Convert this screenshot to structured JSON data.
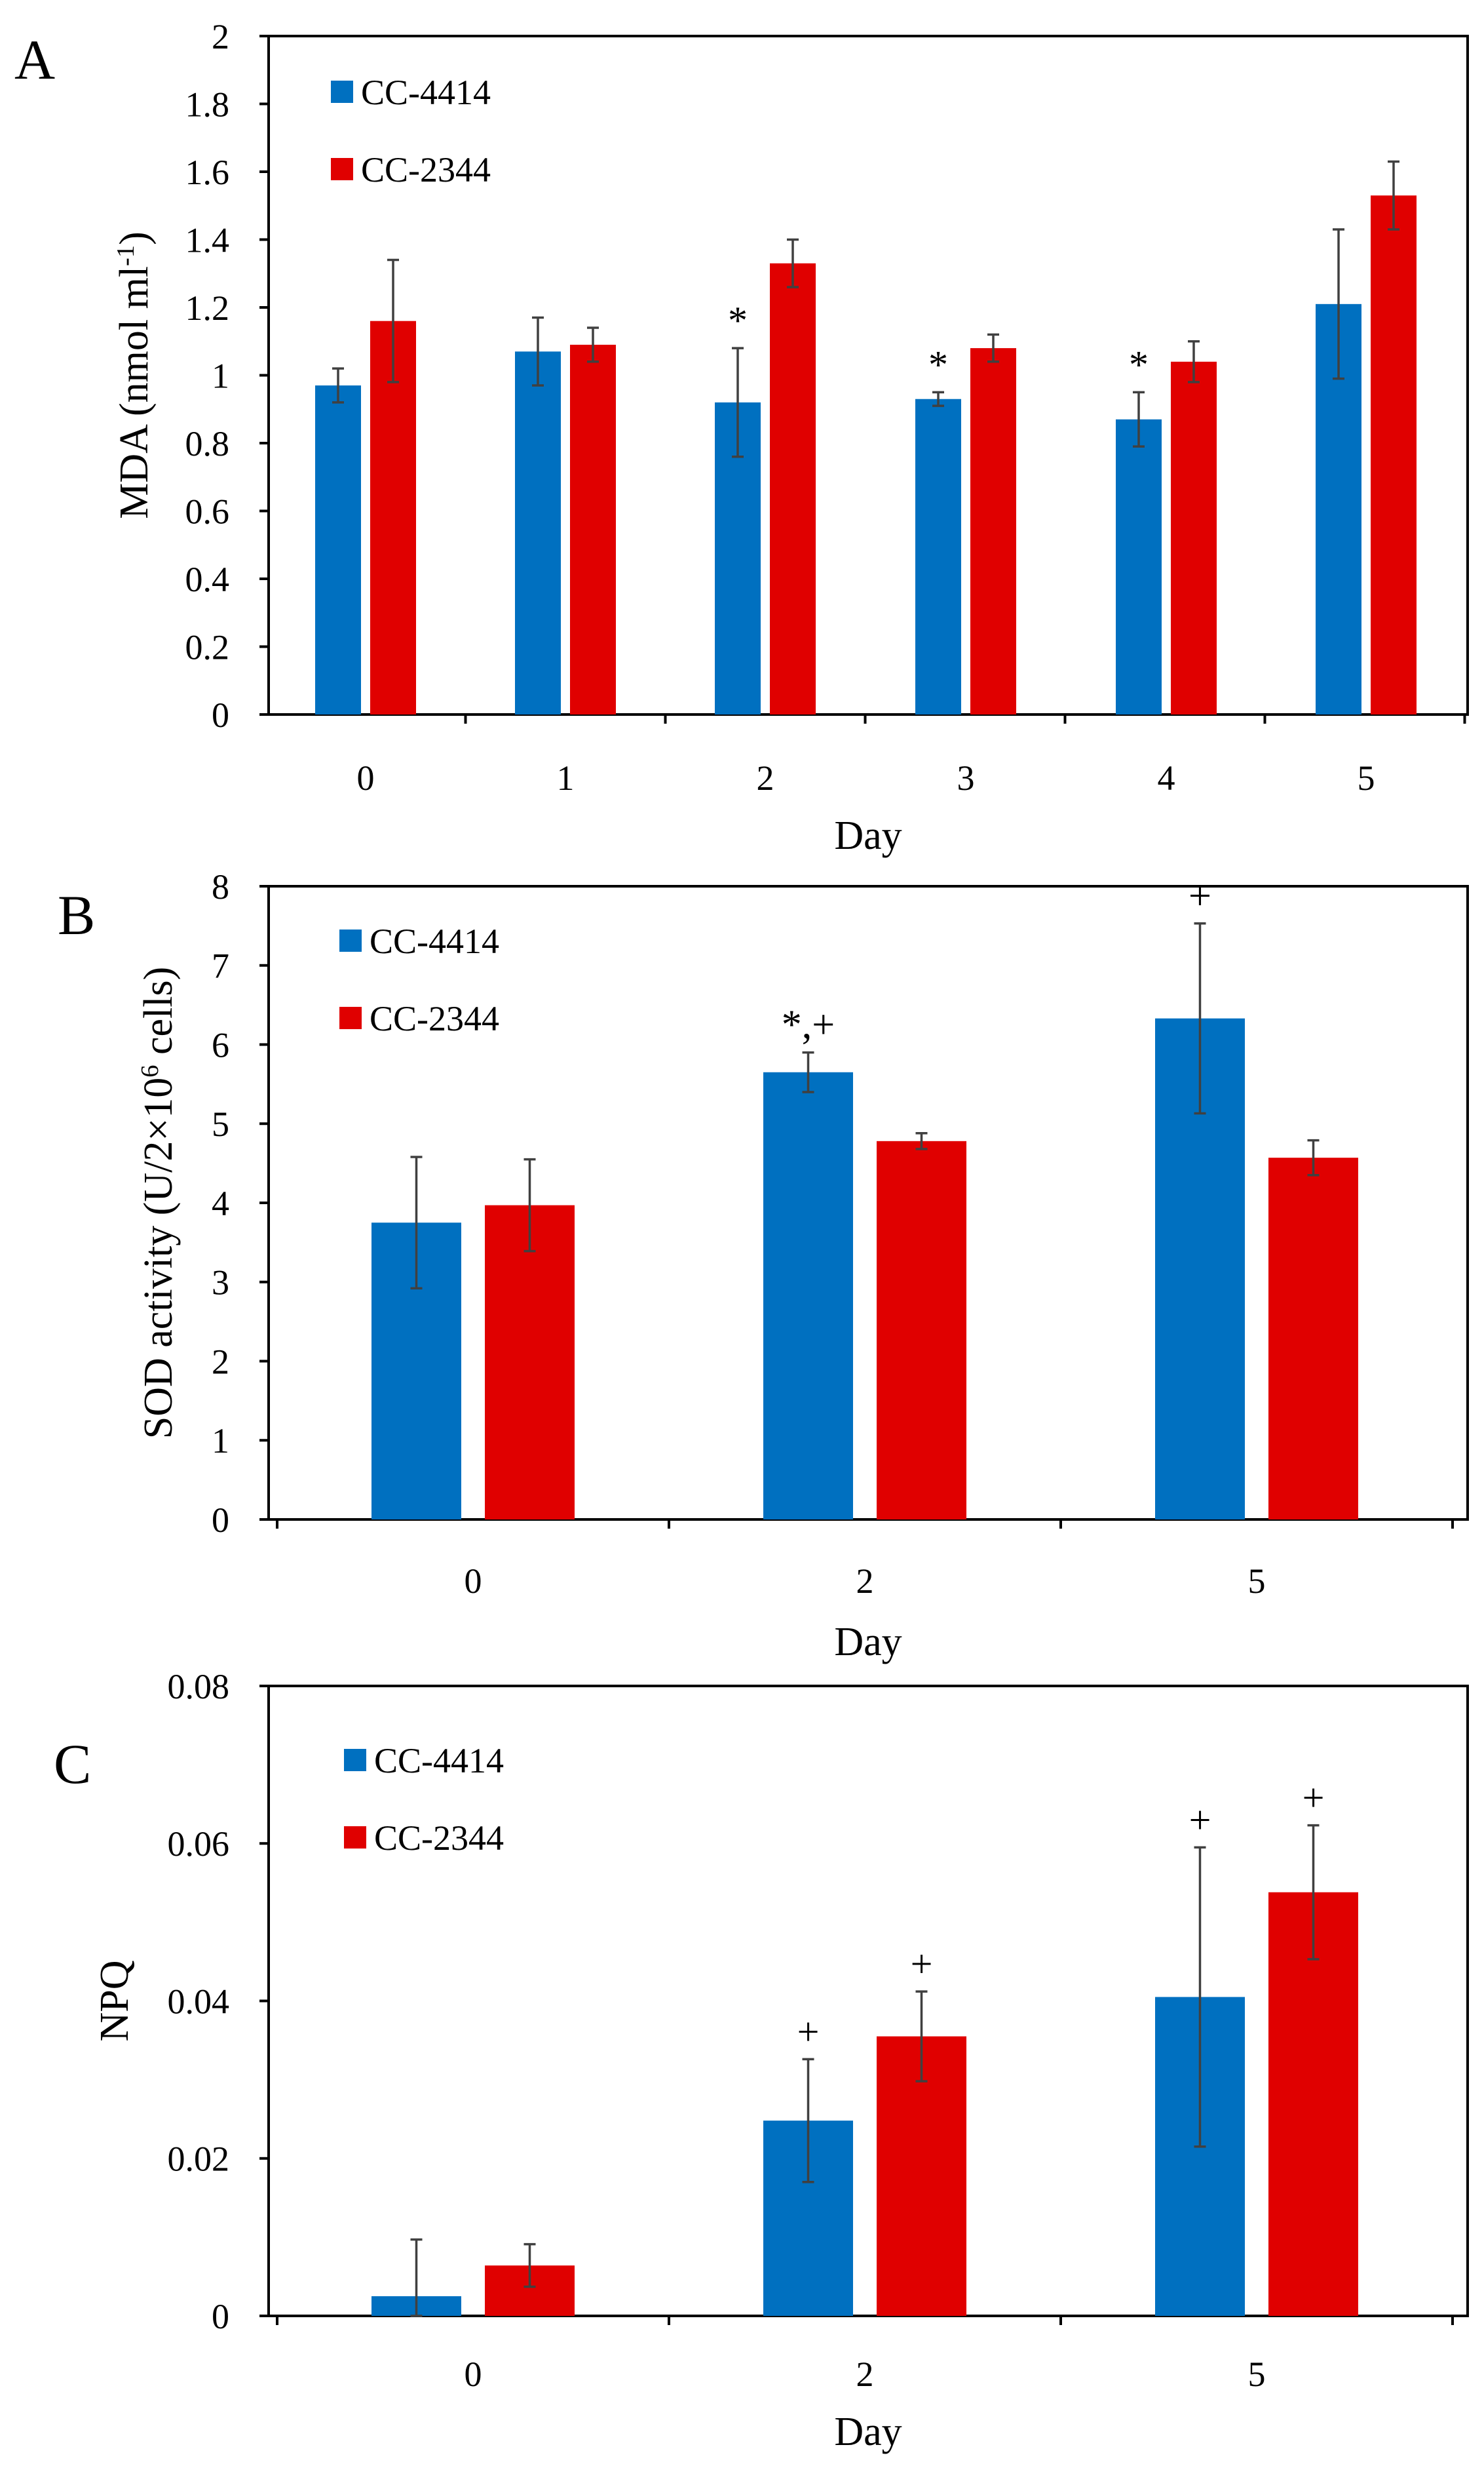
{
  "colors": {
    "CC-4414": "#0070C0",
    "CC-2344": "#E00000"
  },
  "chart_data": [
    {
      "id": "A",
      "panel_label": "A",
      "type": "bar",
      "xlabel": "Day",
      "ylabel": "MDA (nmol ml",
      "ylabel_sup": "-1",
      "ylabel_end": ")",
      "ylim": [
        0,
        2
      ],
      "yticks": [
        "0",
        "0.2",
        "0.4",
        "0.6",
        "0.8",
        "1",
        "1.2",
        "1.4",
        "1.6",
        "1.8",
        "2"
      ],
      "categories": [
        "0",
        "1",
        "2",
        "3",
        "4",
        "5"
      ],
      "legend": [
        "CC-4414",
        "CC-2344"
      ],
      "series": [
        {
          "name": "CC-4414",
          "values": [
            0.97,
            1.07,
            0.92,
            0.93,
            0.87,
            1.21
          ],
          "errors": [
            0.05,
            0.1,
            0.16,
            0.02,
            0.08,
            0.22
          ],
          "annotations": [
            "",
            "",
            "*",
            "*",
            "*",
            ""
          ]
        },
        {
          "name": "CC-2344",
          "values": [
            1.16,
            1.09,
            1.33,
            1.08,
            1.04,
            1.53
          ],
          "errors": [
            0.18,
            0.05,
            0.07,
            0.04,
            0.06,
            0.1
          ],
          "annotations": [
            "",
            "",
            "",
            "",
            "",
            ""
          ]
        }
      ]
    },
    {
      "id": "B",
      "panel_label": "B",
      "type": "bar",
      "xlabel": "Day",
      "ylabel": "SOD activity (U/2×10",
      "ylabel_sup": "6",
      "ylabel_end": " cells)",
      "ylim": [
        0,
        8
      ],
      "yticks": [
        "0",
        "1",
        "2",
        "3",
        "4",
        "5",
        "6",
        "7",
        "8"
      ],
      "categories": [
        "0",
        "2",
        "5"
      ],
      "legend": [
        "CC-4414",
        "CC-2344"
      ],
      "series": [
        {
          "name": "CC-4414",
          "values": [
            3.75,
            5.65,
            6.33
          ],
          "errors": [
            0.83,
            0.25,
            1.2
          ],
          "annotations": [
            "",
            "*,+",
            "+"
          ]
        },
        {
          "name": "CC-2344",
          "values": [
            3.97,
            4.78,
            4.57
          ],
          "errors": [
            0.58,
            0.1,
            0.22
          ],
          "annotations": [
            "",
            "",
            ""
          ]
        }
      ]
    },
    {
      "id": "C",
      "panel_label": "C",
      "type": "bar",
      "xlabel": "Day",
      "ylabel": "NPQ",
      "ylabel_sup": "",
      "ylabel_end": "",
      "ylim": [
        0,
        0.08
      ],
      "yticks": [
        "0",
        "0.02",
        "0.04",
        "0.06",
        "0.08"
      ],
      "categories": [
        "0",
        "2",
        "5"
      ],
      "legend": [
        "CC-4414",
        "CC-2344"
      ],
      "series": [
        {
          "name": "CC-4414",
          "values": [
            0.0025,
            0.0248,
            0.0405
          ],
          "errors": [
            0.0072,
            0.0078,
            0.019
          ],
          "annotations": [
            "",
            "+",
            "+"
          ]
        },
        {
          "name": "CC-2344",
          "values": [
            0.0064,
            0.0355,
            0.0538
          ],
          "errors": [
            0.0027,
            0.0057,
            0.0085
          ],
          "annotations": [
            "",
            "+",
            "+"
          ]
        }
      ]
    }
  ]
}
